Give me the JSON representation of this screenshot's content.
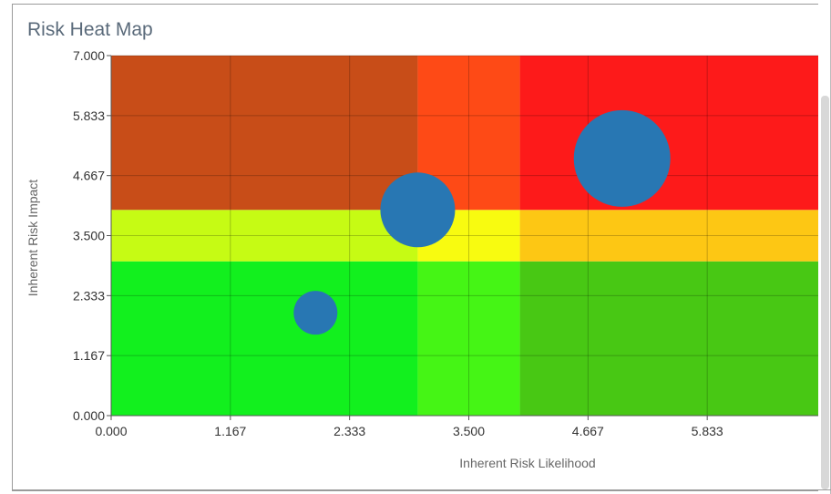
{
  "chart_data": {
    "type": "heatmap",
    "title": "Risk Heat Map",
    "xlabel": "Inherent Risk Likelihood",
    "ylabel": "Inherent Risk Impact",
    "xlim": [
      0,
      6
    ],
    "ylim": [
      0,
      7
    ],
    "x_tick_labels": [
      "0.000",
      "1.167",
      "2.333",
      "3.500",
      "4.667",
      "5.833"
    ],
    "y_tick_labels": [
      "0.000",
      "1.167",
      "2.333",
      "3.500",
      "4.667",
      "5.833",
      "7.000"
    ],
    "grid": true,
    "zones": [
      {
        "x": [
          0,
          3
        ],
        "y": [
          0,
          3
        ],
        "color": "#12f01e"
      },
      {
        "x": [
          3,
          4
        ],
        "y": [
          0,
          3
        ],
        "color": "#45f515"
      },
      {
        "x": [
          4,
          6
        ],
        "y": [
          0,
          3
        ],
        "color": "#48c814"
      },
      {
        "x": [
          0,
          3
        ],
        "y": [
          3,
          4
        ],
        "color": "#c6fb14"
      },
      {
        "x": [
          3,
          4
        ],
        "y": [
          3,
          4
        ],
        "color": "#f8fb10"
      },
      {
        "x": [
          4,
          6
        ],
        "y": [
          3,
          4
        ],
        "color": "#fdc714"
      },
      {
        "x": [
          0,
          3
        ],
        "y": [
          4,
          7
        ],
        "color": "#c84d18"
      },
      {
        "x": [
          3,
          4
        ],
        "y": [
          4,
          7
        ],
        "color": "#fe4a16"
      },
      {
        "x": [
          4,
          6
        ],
        "y": [
          4,
          7
        ],
        "color": "#fd1a1a"
      }
    ],
    "bubbles": [
      {
        "x": 2.0,
        "y": 2.0,
        "size": 1
      },
      {
        "x": 3.0,
        "y": 4.0,
        "size": 2
      },
      {
        "x": 5.0,
        "y": 5.0,
        "size": 3
      }
    ],
    "bubble_color": "#2877b3"
  }
}
